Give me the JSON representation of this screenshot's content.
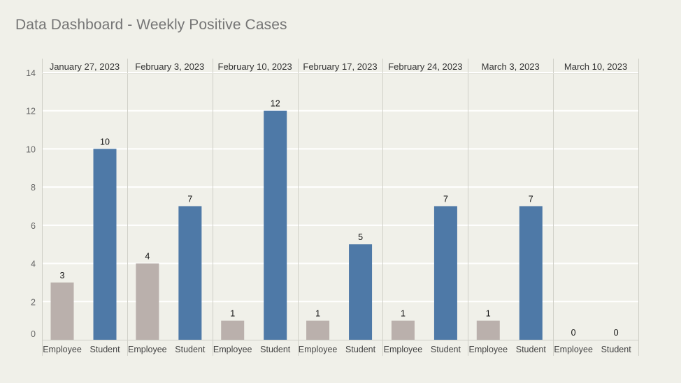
{
  "page": {
    "title": "Data Dashboard - Weekly Positive Cases"
  },
  "colors": {
    "background": "#f0f0e9",
    "employee": "#bab0ac",
    "student": "#4e79a7",
    "gridline": "#ffffff",
    "divider": "#d0d0c8",
    "axis_text": "#666666",
    "label_text": "#111111"
  },
  "chart_data": {
    "type": "bar",
    "title": "Data Dashboard - Weekly Positive Cases",
    "ylim": [
      0,
      14
    ],
    "yticks": [
      0,
      2,
      4,
      6,
      8,
      10,
      12,
      14
    ],
    "grid": true,
    "subcategories": [
      "Employee",
      "Student"
    ],
    "categories": [
      "January 27, 2023",
      "February 3, 2023",
      "February 10, 2023",
      "February 17, 2023",
      "February 24, 2023",
      "March 3, 2023",
      "March 10, 2023"
    ],
    "series": [
      {
        "subcategory": "Employee",
        "values": [
          3,
          4,
          1,
          1,
          1,
          1,
          0
        ]
      },
      {
        "subcategory": "Student",
        "values": [
          10,
          7,
          12,
          5,
          7,
          7,
          0
        ]
      }
    ]
  }
}
